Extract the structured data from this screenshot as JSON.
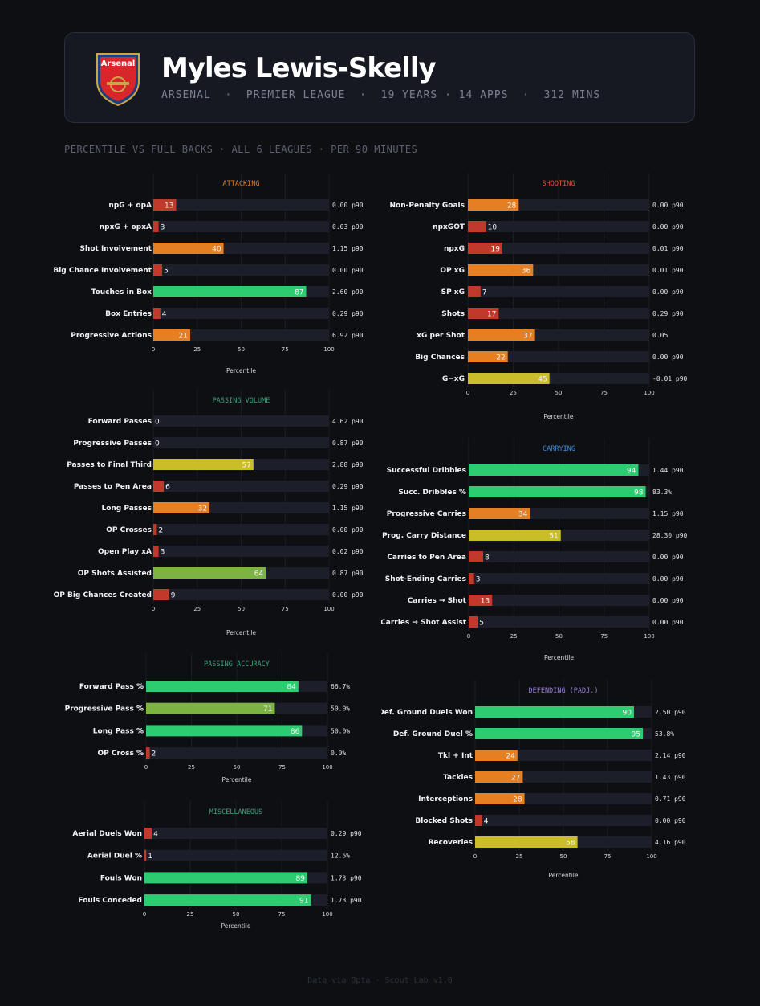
{
  "header": {
    "player_name": "Myles Lewis-Skelly",
    "meta": "ARSENAL  ·  PREMIER LEAGUE  ·  19 YEARS · 14 APPS  ·  312 MINS",
    "crest_text": "Arsenal"
  },
  "subtitle": "PERCENTILE VS FULL BACKS · ALL 6 LEAGUES · PER 90 MINUTES",
  "footer": "Data via Opta · Scout Lab v1.0",
  "colors": {
    "background": "#0d0f13",
    "track": "#1c1f29",
    "elite": "#2ecc71",
    "good": "#7cb342",
    "average": "#c9bd2a",
    "below": "#e67e22",
    "poor": "#c0392b",
    "attacking": "#e67e22",
    "shooting": "#e74c3c",
    "passing": "#3fa07a",
    "carrying": "#3d8ee0",
    "defending": "#9b7fd4",
    "misc": "#3fa07a"
  },
  "chart_data": [
    {
      "id": "attacking",
      "type": "bar",
      "title": "ATTACKING",
      "title_color_key": "attacking",
      "xlabel": "Percentile",
      "xlim": [
        0,
        100
      ],
      "ticks": [
        "0",
        "25",
        "50",
        "75",
        "100"
      ],
      "categories": [
        "npG + opA",
        "npxG + opxA",
        "Shot Involvement",
        "Big Chance Involvement",
        "Touches in Box",
        "Box Entries",
        "Progressive Actions"
      ],
      "values": [
        13,
        3,
        40,
        5,
        87,
        4,
        21
      ],
      "raw": [
        "0.00 p90",
        "0.03 p90",
        "1.15 p90",
        "0.00 p90",
        "2.60 p90",
        "0.29 p90",
        "6.92 p90"
      ]
    },
    {
      "id": "shooting",
      "type": "bar",
      "title": "SHOOTING",
      "title_color_key": "shooting",
      "xlabel": "Percentile",
      "xlim": [
        0,
        100
      ],
      "ticks": [
        "0",
        "25",
        "50",
        "75",
        "100"
      ],
      "categories": [
        "Non-Penalty Goals",
        "npxGOT",
        "npxG",
        "OP xG",
        "SP xG",
        "Shots",
        "xG per Shot",
        "Big Chances",
        "G−xG"
      ],
      "values": [
        28,
        10,
        19,
        36,
        7,
        17,
        37,
        22,
        45
      ],
      "raw": [
        "0.00 p90",
        "0.00 p90",
        "0.01 p90",
        "0.01 p90",
        "0.00 p90",
        "0.29 p90",
        "0.05",
        "0.00 p90",
        "-0.01 p90"
      ]
    },
    {
      "id": "passing-volume",
      "type": "bar",
      "title": "PASSING VOLUME",
      "title_color_key": "passing",
      "xlabel": "Percentile",
      "xlim": [
        0,
        100
      ],
      "ticks": [
        "0",
        "25",
        "50",
        "75",
        "100"
      ],
      "categories": [
        "Forward Passes",
        "Progressive Passes",
        "Passes to Final Third",
        "Passes to Pen Area",
        "Long Passes",
        "OP Crosses",
        "Open Play xA",
        "OP Shots Assisted",
        "OP Big Chances Created"
      ],
      "values": [
        0,
        0,
        57,
        6,
        32,
        2,
        3,
        64,
        9
      ],
      "raw": [
        "4.62 p90",
        "0.87 p90",
        "2.88 p90",
        "0.29 p90",
        "1.15 p90",
        "0.00 p90",
        "0.02 p90",
        "0.87 p90",
        "0.00 p90"
      ]
    },
    {
      "id": "carrying",
      "type": "bar",
      "title": "CARRYING",
      "title_color_key": "carrying",
      "xlabel": "Percentile",
      "xlim": [
        0,
        100
      ],
      "ticks": [
        "0",
        "25",
        "50",
        "75",
        "100"
      ],
      "categories": [
        "Successful Dribbles",
        "Succ. Dribbles %",
        "Progressive Carries",
        "Prog. Carry Distance",
        "Carries to Pen Area",
        "Shot-Ending Carries",
        "Carries → Shot",
        "Carries → Shot Assist"
      ],
      "values": [
        94,
        98,
        34,
        51,
        8,
        3,
        13,
        5
      ],
      "raw": [
        "1.44 p90",
        "83.3%",
        "1.15 p90",
        "28.30 p90",
        "0.00 p90",
        "0.00 p90",
        "0.00 p90",
        "0.00 p90"
      ]
    },
    {
      "id": "passing-accuracy",
      "type": "bar",
      "title": "PASSING ACCURACY",
      "title_color_key": "passing",
      "xlabel": "Percentile",
      "xlim": [
        0,
        100
      ],
      "ticks": [
        "0",
        "25",
        "50",
        "75",
        "100"
      ],
      "categories": [
        "Forward Pass %",
        "Progressive Pass %",
        "Long Pass %",
        "OP Cross %"
      ],
      "values": [
        84,
        71,
        86,
        2
      ],
      "raw": [
        "66.7%",
        "50.0%",
        "50.0%",
        "0.0%"
      ]
    },
    {
      "id": "defending",
      "type": "bar",
      "title": "DEFENDING (PADJ.)",
      "title_color_key": "defending",
      "xlabel": "Percentile",
      "xlim": [
        0,
        100
      ],
      "ticks": [
        "0",
        "25",
        "50",
        "75",
        "100"
      ],
      "categories": [
        "Def. Ground Duels Won",
        "Def. Ground Duel %",
        "Tkl + Int",
        "Tackles",
        "Interceptions",
        "Blocked Shots",
        "Recoveries"
      ],
      "values": [
        90,
        95,
        24,
        27,
        28,
        4,
        58
      ],
      "raw": [
        "2.50 p90",
        "53.8%",
        "2.14 p90",
        "1.43 p90",
        "0.71 p90",
        "0.00 p90",
        "4.16 p90"
      ]
    },
    {
      "id": "misc",
      "type": "bar",
      "title": "MISCELLANEOUS",
      "title_color_key": "misc",
      "xlabel": "Percentile",
      "xlim": [
        0,
        100
      ],
      "ticks": [
        "0",
        "25",
        "50",
        "75",
        "100"
      ],
      "categories": [
        "Aerial Duels Won",
        "Aerial Duel %",
        "Fouls Won",
        "Fouls Conceded"
      ],
      "values": [
        4,
        1,
        89,
        91
      ],
      "raw": [
        "0.29 p90",
        "12.5%",
        "1.73 p90",
        "1.73 p90"
      ]
    }
  ]
}
